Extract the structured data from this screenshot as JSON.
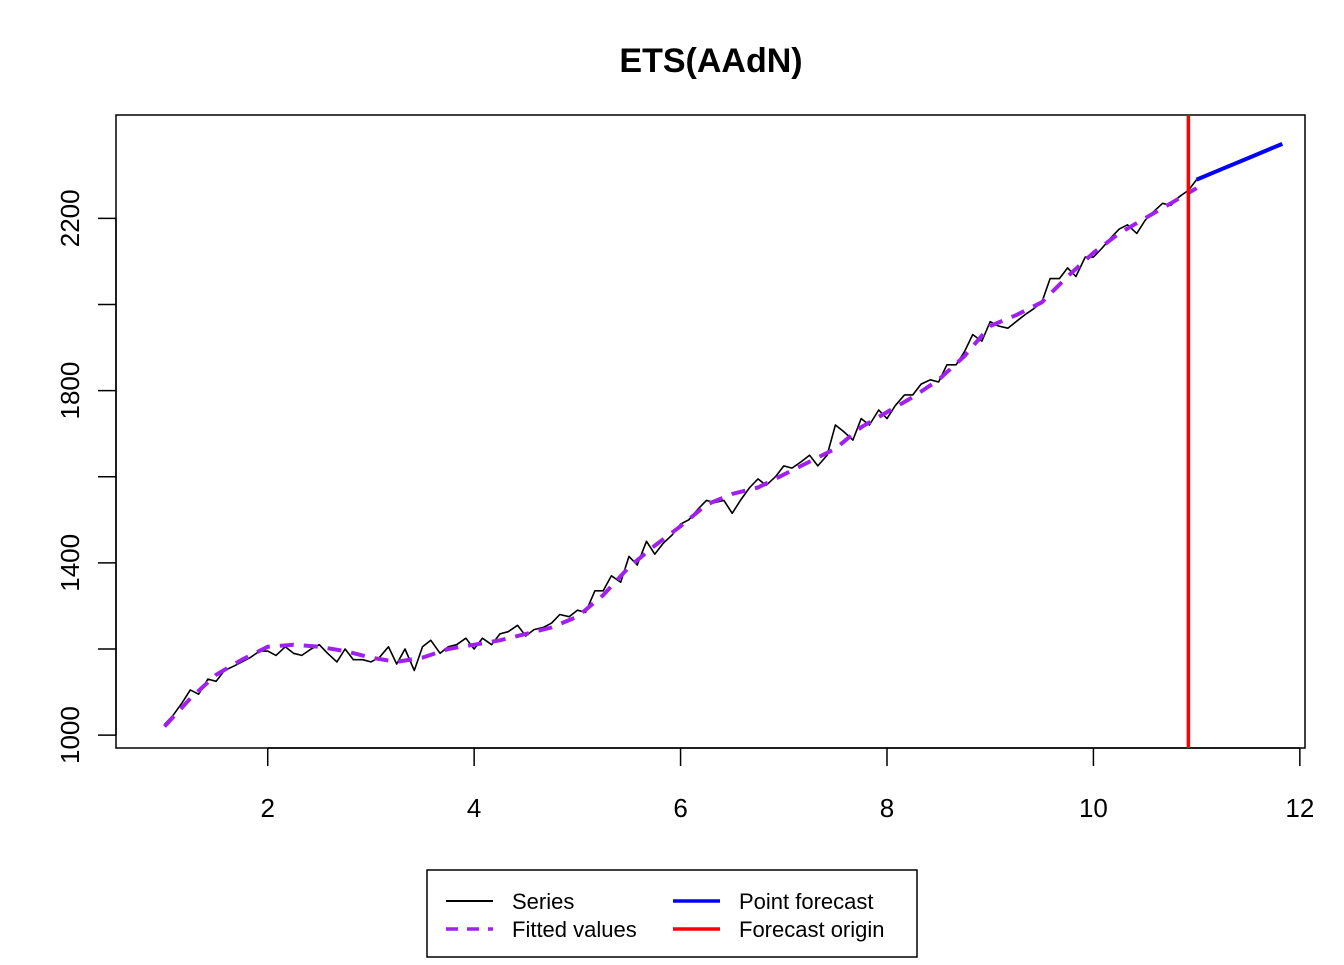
{
  "chart_data": {
    "type": "line",
    "title": "ETS(AAdN)",
    "xlabel": "",
    "ylabel": "",
    "xlim": [
      0.53,
      12.05
    ],
    "ylim": [
      970,
      2440
    ],
    "x_ticks": [
      2,
      4,
      6,
      8,
      10,
      12
    ],
    "x_tick_labels": [
      "2",
      "4",
      "6",
      "8",
      "10",
      "12"
    ],
    "y_ticks": [
      1000,
      1200,
      1400,
      1600,
      1800,
      2000,
      2200
    ],
    "y_tick_labels": [
      "1000",
      "",
      "1400",
      "",
      "1800",
      "",
      "2200"
    ],
    "grid": false,
    "legend_position": "bottom",
    "series": [
      {
        "name": "Series",
        "color": "#000000",
        "style": "solid",
        "points": [
          [
            1.0,
            1025
          ],
          [
            1.08,
            1045
          ],
          [
            1.17,
            1075
          ],
          [
            1.25,
            1105
          ],
          [
            1.33,
            1095
          ],
          [
            1.42,
            1130
          ],
          [
            1.5,
            1125
          ],
          [
            1.58,
            1150
          ],
          [
            1.67,
            1160
          ],
          [
            1.75,
            1170
          ],
          [
            1.83,
            1180
          ],
          [
            1.92,
            1195
          ],
          [
            2.0,
            1195
          ],
          [
            2.08,
            1185
          ],
          [
            2.17,
            1205
          ],
          [
            2.25,
            1190
          ],
          [
            2.33,
            1185
          ],
          [
            2.42,
            1200
          ],
          [
            2.5,
            1210
          ],
          [
            2.58,
            1190
          ],
          [
            2.67,
            1170
          ],
          [
            2.75,
            1200
          ],
          [
            2.83,
            1175
          ],
          [
            2.92,
            1175
          ],
          [
            3.0,
            1170
          ],
          [
            3.08,
            1180
          ],
          [
            3.17,
            1205
          ],
          [
            3.25,
            1165
          ],
          [
            3.33,
            1200
          ],
          [
            3.42,
            1150
          ],
          [
            3.5,
            1205
          ],
          [
            3.58,
            1220
          ],
          [
            3.67,
            1190
          ],
          [
            3.75,
            1205
          ],
          [
            3.83,
            1210
          ],
          [
            3.92,
            1225
          ],
          [
            4.0,
            1200
          ],
          [
            4.08,
            1225
          ],
          [
            4.17,
            1210
          ],
          [
            4.25,
            1235
          ],
          [
            4.33,
            1240
          ],
          [
            4.42,
            1255
          ],
          [
            4.5,
            1230
          ],
          [
            4.58,
            1245
          ],
          [
            4.67,
            1250
          ],
          [
            4.75,
            1260
          ],
          [
            4.83,
            1280
          ],
          [
            4.92,
            1275
          ],
          [
            5.0,
            1290
          ],
          [
            5.08,
            1285
          ],
          [
            5.17,
            1335
          ],
          [
            5.25,
            1335
          ],
          [
            5.33,
            1370
          ],
          [
            5.42,
            1355
          ],
          [
            5.5,
            1415
          ],
          [
            5.58,
            1395
          ],
          [
            5.67,
            1450
          ],
          [
            5.75,
            1420
          ],
          [
            5.83,
            1445
          ],
          [
            5.92,
            1465
          ],
          [
            6.0,
            1490
          ],
          [
            6.08,
            1500
          ],
          [
            6.17,
            1525
          ],
          [
            6.25,
            1545
          ],
          [
            6.33,
            1540
          ],
          [
            6.42,
            1545
          ],
          [
            6.5,
            1515
          ],
          [
            6.58,
            1545
          ],
          [
            6.67,
            1575
          ],
          [
            6.75,
            1595
          ],
          [
            6.83,
            1580
          ],
          [
            6.92,
            1600
          ],
          [
            7.0,
            1625
          ],
          [
            7.08,
            1620
          ],
          [
            7.17,
            1635
          ],
          [
            7.25,
            1650
          ],
          [
            7.33,
            1625
          ],
          [
            7.42,
            1650
          ],
          [
            7.5,
            1720
          ],
          [
            7.58,
            1705
          ],
          [
            7.67,
            1685
          ],
          [
            7.75,
            1735
          ],
          [
            7.83,
            1720
          ],
          [
            7.92,
            1755
          ],
          [
            8.0,
            1735
          ],
          [
            8.08,
            1765
          ],
          [
            8.17,
            1790
          ],
          [
            8.25,
            1790
          ],
          [
            8.33,
            1815
          ],
          [
            8.42,
            1825
          ],
          [
            8.5,
            1820
          ],
          [
            8.58,
            1860
          ],
          [
            8.67,
            1860
          ],
          [
            8.75,
            1890
          ],
          [
            8.83,
            1930
          ],
          [
            8.92,
            1915
          ],
          [
            9.0,
            1960
          ],
          [
            9.08,
            1950
          ],
          [
            9.17,
            1945
          ],
          [
            9.25,
            1960
          ],
          [
            9.33,
            1975
          ],
          [
            9.42,
            1990
          ],
          [
            9.5,
            2005
          ],
          [
            9.58,
            2060
          ],
          [
            9.67,
            2060
          ],
          [
            9.75,
            2085
          ],
          [
            9.83,
            2065
          ],
          [
            9.92,
            2110
          ],
          [
            10.0,
            2110
          ],
          [
            10.08,
            2130
          ],
          [
            10.17,
            2155
          ],
          [
            10.25,
            2175
          ],
          [
            10.33,
            2185
          ],
          [
            10.42,
            2165
          ],
          [
            10.5,
            2195
          ],
          [
            10.58,
            2215
          ],
          [
            10.67,
            2235
          ],
          [
            10.75,
            2230
          ],
          [
            10.83,
            2250
          ],
          [
            10.92,
            2265
          ],
          [
            11.0,
            2290
          ]
        ]
      },
      {
        "name": "Fitted values",
        "color": "#a020f0",
        "style": "dashed",
        "points": [
          [
            1.0,
            1020
          ],
          [
            1.25,
            1085
          ],
          [
            1.5,
            1140
          ],
          [
            1.75,
            1175
          ],
          [
            2.0,
            1205
          ],
          [
            2.25,
            1210
          ],
          [
            2.5,
            1205
          ],
          [
            2.75,
            1195
          ],
          [
            3.0,
            1180
          ],
          [
            3.25,
            1170
          ],
          [
            3.5,
            1180
          ],
          [
            3.75,
            1200
          ],
          [
            4.0,
            1210
          ],
          [
            4.25,
            1220
          ],
          [
            4.5,
            1235
          ],
          [
            4.75,
            1250
          ],
          [
            5.0,
            1275
          ],
          [
            5.25,
            1325
          ],
          [
            5.5,
            1390
          ],
          [
            5.75,
            1440
          ],
          [
            6.0,
            1485
          ],
          [
            6.25,
            1535
          ],
          [
            6.5,
            1560
          ],
          [
            6.75,
            1575
          ],
          [
            7.0,
            1605
          ],
          [
            7.25,
            1635
          ],
          [
            7.5,
            1665
          ],
          [
            7.75,
            1715
          ],
          [
            8.0,
            1750
          ],
          [
            8.25,
            1785
          ],
          [
            8.5,
            1825
          ],
          [
            8.75,
            1880
          ],
          [
            9.0,
            1950
          ],
          [
            9.25,
            1975
          ],
          [
            9.5,
            2005
          ],
          [
            9.75,
            2065
          ],
          [
            10.0,
            2120
          ],
          [
            10.25,
            2165
          ],
          [
            10.5,
            2200
          ],
          [
            10.75,
            2235
          ],
          [
            11.0,
            2270
          ]
        ]
      },
      {
        "name": "Point forecast",
        "color": "#0000ff",
        "style": "solid",
        "points": [
          [
            11.0,
            2290
          ],
          [
            11.25,
            2315
          ],
          [
            11.5,
            2340
          ],
          [
            11.75,
            2365
          ],
          [
            11.83,
            2373
          ]
        ]
      }
    ],
    "vlines": [
      {
        "name": "Forecast origin",
        "x": 10.92,
        "color": "#ff0000"
      }
    ],
    "legend": [
      {
        "label": "Series",
        "color": "#000000",
        "style": "solid"
      },
      {
        "label": "Point forecast",
        "color": "#0000ff",
        "style": "solid"
      },
      {
        "label": "Fitted values",
        "color": "#a020f0",
        "style": "dashed"
      },
      {
        "label": "Forecast origin",
        "color": "#ff0000",
        "style": "solid"
      }
    ]
  }
}
